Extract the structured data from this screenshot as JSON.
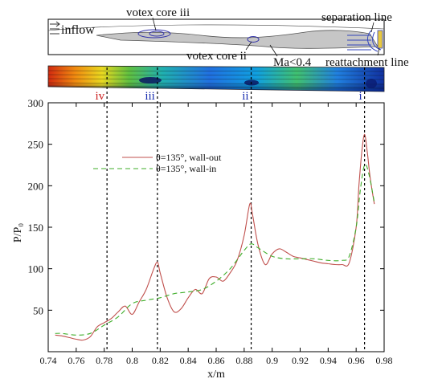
{
  "colors": {
    "wall_out": "#c0504d",
    "wall_in": "#3fae2a",
    "roman_red": "#cc2222",
    "roman_blue": "#1a2fb0",
    "annotation": "#1a1a8a",
    "vortex": "#3333aa",
    "gray_region": "#bdbdbd"
  },
  "schematic": {
    "labels": {
      "inflow": "inflow",
      "vortex_iii": "votex core iii",
      "vortex_ii": "votex core ii",
      "separation": "separation line",
      "mach": "Ma<0.4",
      "reattachment": "reattachment line"
    }
  },
  "vortex_markers": [
    {
      "label": "iv",
      "x": 0.782,
      "color_key": "roman_red"
    },
    {
      "label": "iii",
      "x": 0.818,
      "color_key": "roman_blue"
    },
    {
      "label": "ii",
      "x": 0.885,
      "color_key": "roman_blue"
    },
    {
      "label": "i",
      "x": 0.966,
      "color_key": "roman_blue"
    }
  ],
  "chart_data": {
    "type": "line",
    "xlabel": "x/m",
    "ylabel": "P/P₀",
    "xlim": [
      0.74,
      0.98
    ],
    "ylim": [
      0,
      300
    ],
    "xticks": [
      0.74,
      0.76,
      0.78,
      0.8,
      0.82,
      0.84,
      0.86,
      0.88,
      0.9,
      0.92,
      0.94,
      0.96,
      0.98
    ],
    "yticks": [
      50,
      100,
      150,
      200,
      250,
      300
    ],
    "legend": {
      "placement": "upper-left"
    },
    "series": [
      {
        "name": "θ=135°, wall-out",
        "color_key": "wall_out",
        "dash": "solid",
        "x": [
          0.745,
          0.75,
          0.755,
          0.76,
          0.765,
          0.77,
          0.775,
          0.78,
          0.785,
          0.79,
          0.795,
          0.8,
          0.805,
          0.81,
          0.815,
          0.818,
          0.82,
          0.825,
          0.83,
          0.835,
          0.84,
          0.845,
          0.85,
          0.855,
          0.86,
          0.865,
          0.87,
          0.875,
          0.88,
          0.884,
          0.886,
          0.89,
          0.895,
          0.9,
          0.905,
          0.91,
          0.915,
          0.92,
          0.925,
          0.93,
          0.935,
          0.94,
          0.945,
          0.95,
          0.955,
          0.96,
          0.962,
          0.964,
          0.966,
          0.968,
          0.97,
          0.973
        ],
        "y": [
          20,
          19,
          17,
          15,
          14,
          18,
          30,
          35,
          40,
          48,
          55,
          45,
          60,
          75,
          98,
          108,
          95,
          65,
          48,
          52,
          65,
          75,
          70,
          88,
          90,
          85,
          95,
          110,
          140,
          178,
          165,
          128,
          105,
          118,
          124,
          120,
          115,
          113,
          111,
          109,
          107,
          106,
          105,
          105,
          107,
          150,
          200,
          240,
          262,
          240,
          210,
          178
        ]
      },
      {
        "name": "θ=135°, wall-in",
        "color_key": "wall_in",
        "dash": "dashed",
        "x": [
          0.745,
          0.75,
          0.76,
          0.77,
          0.78,
          0.79,
          0.8,
          0.81,
          0.82,
          0.83,
          0.84,
          0.85,
          0.86,
          0.87,
          0.88,
          0.885,
          0.89,
          0.9,
          0.91,
          0.92,
          0.93,
          0.94,
          0.95,
          0.955,
          0.96,
          0.963,
          0.966,
          0.969,
          0.973
        ],
        "y": [
          22,
          22,
          20,
          22,
          32,
          42,
          58,
          62,
          65,
          70,
          72,
          75,
          85,
          100,
          122,
          130,
          125,
          115,
          112,
          112,
          112,
          110,
          110,
          115,
          150,
          195,
          225,
          215,
          180
        ]
      }
    ]
  }
}
